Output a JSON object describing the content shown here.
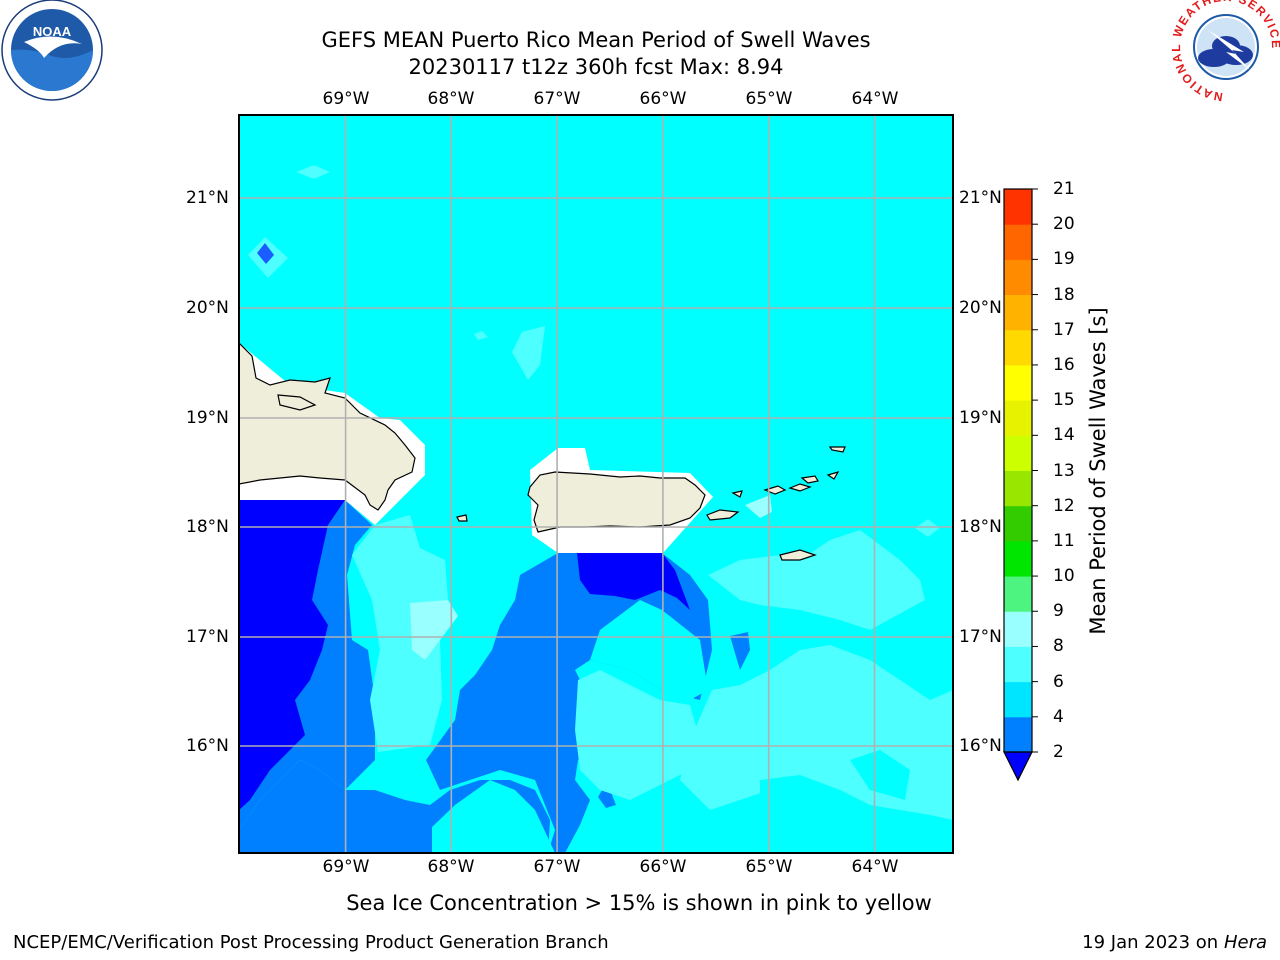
{
  "title": {
    "line1": "GEFS MEAN Puerto Rico Mean Period of Swell Waves",
    "line2": "20230117 t12z 360h fcst   Max: 8.94"
  },
  "map": {
    "lon_labels": [
      "69°W",
      "68°W",
      "67°W",
      "66°W",
      "65°W",
      "64°W"
    ],
    "lat_labels": [
      "21°N",
      "20°N",
      "19°N",
      "18°N",
      "17°N",
      "16°N"
    ],
    "lon_range": [
      -70.0,
      -63.25
    ],
    "lat_range": [
      15.0,
      21.75
    ]
  },
  "colorbar": {
    "title": "Mean Period of Swell Waves [s]",
    "levels": [
      "2",
      "4",
      "6",
      "8",
      "9",
      "10",
      "11",
      "12",
      "13",
      "14",
      "15",
      "16",
      "17",
      "18",
      "19",
      "20",
      "21"
    ],
    "colors": [
      "#0080ff",
      "#00e5ff",
      "#4dffff",
      "#99ffff",
      "#4df580",
      "#00e600",
      "#33cc00",
      "#99e600",
      "#ccff00",
      "#e6f200",
      "#ffff00",
      "#ffd900",
      "#ffb300",
      "#ff8c00",
      "#ff6600",
      "#ff3300",
      "#ff0000"
    ],
    "under_color": "#0000ff"
  },
  "note": "Sea Ice Concentration > 15% is shown in pink to yellow",
  "footer": {
    "left": "NCEP/EMC/Verification Post Processing Product Generation Branch",
    "date": "19 Jan 2023 on",
    "machine": "Hera"
  },
  "logos": {
    "left": "noaa-logo",
    "left_text": "NOAA",
    "right": "nws-logo",
    "right_text": "NATIONAL WEATHER SERVICE"
  }
}
